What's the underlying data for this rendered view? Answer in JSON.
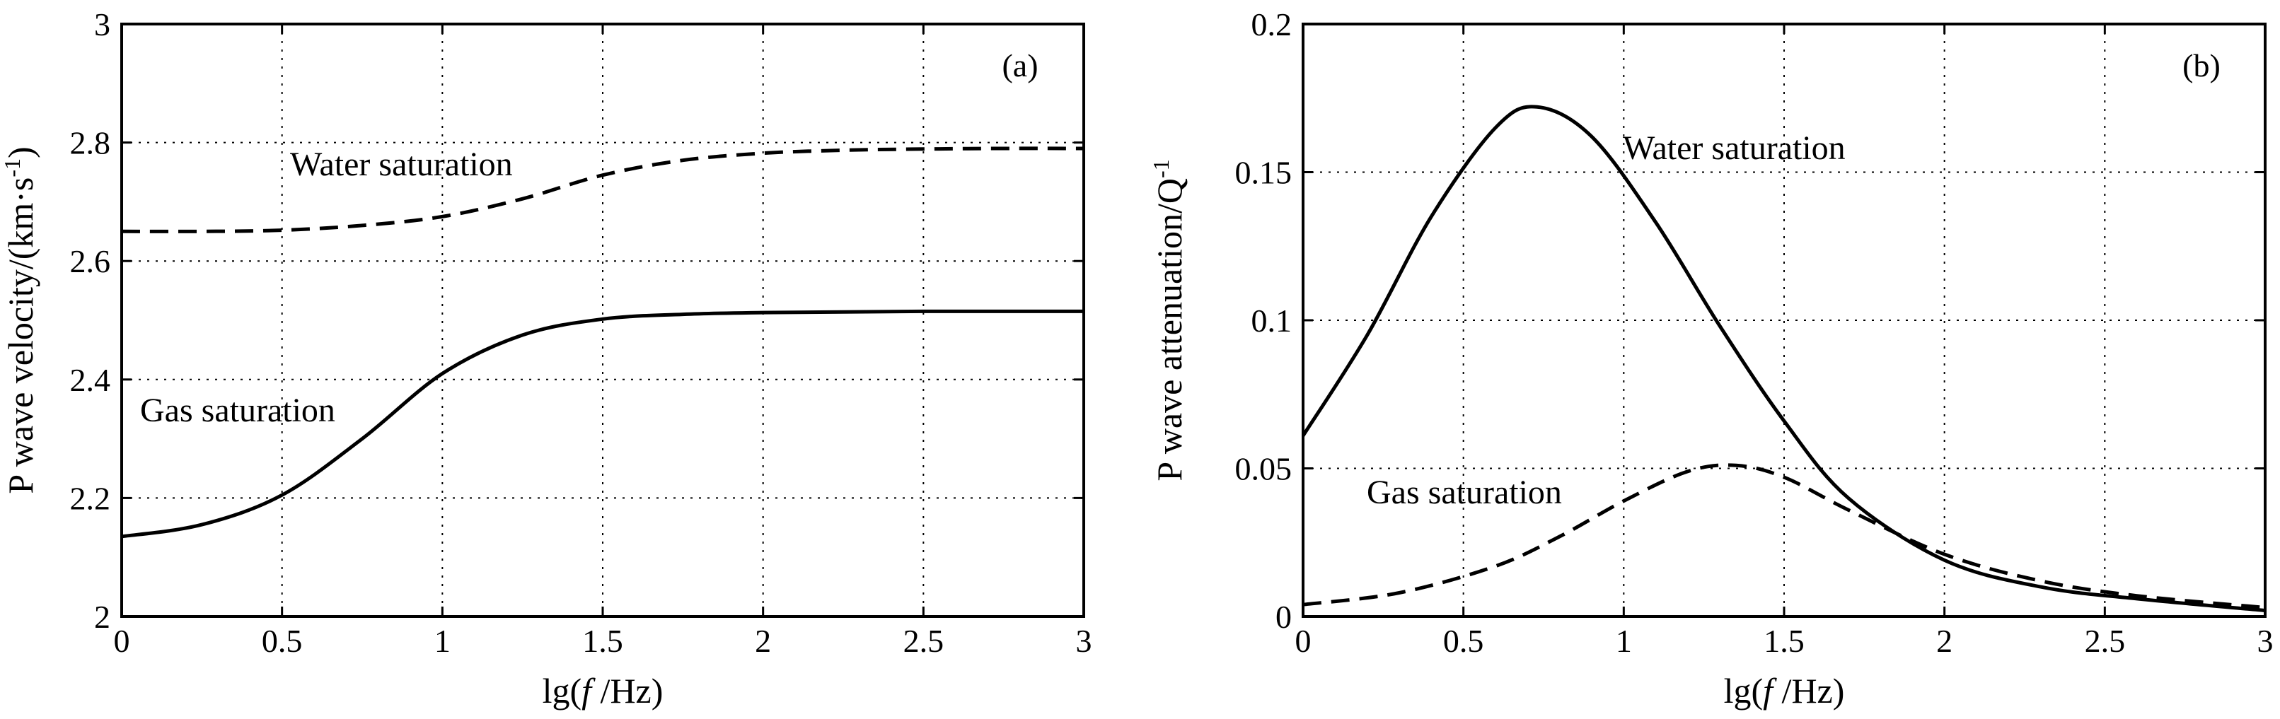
{
  "chart_data": [
    {
      "type": "line",
      "panel_label": "(a)",
      "xlabel": "lg(f /Hz)",
      "ylabel": "P wave velocity/(km·s-1)",
      "xlim": [
        0,
        3
      ],
      "ylim": [
        2,
        3
      ],
      "x_ticks": [
        "0",
        "0.5",
        "1",
        "1.5",
        "2",
        "2.5",
        "3"
      ],
      "y_ticks": [
        "2",
        "2.2",
        "2.4",
        "2.6",
        "2.8",
        "3"
      ],
      "grid": true,
      "annotations": [
        "Water saturation",
        "Gas saturation"
      ],
      "series": [
        {
          "style": "dashed",
          "x": [
            0,
            0.25,
            0.5,
            0.75,
            1.0,
            1.25,
            1.5,
            1.75,
            2.0,
            2.25,
            2.5,
            2.75,
            3.0
          ],
          "values": [
            2.65,
            2.65,
            2.652,
            2.66,
            2.675,
            2.705,
            2.745,
            2.77,
            2.782,
            2.787,
            2.789,
            2.79,
            2.79
          ]
        },
        {
          "style": "solid",
          "x": [
            0,
            0.25,
            0.5,
            0.75,
            1.0,
            1.25,
            1.5,
            1.75,
            2.0,
            2.25,
            2.5,
            2.75,
            3.0
          ],
          "values": [
            2.135,
            2.155,
            2.205,
            2.3,
            2.41,
            2.475,
            2.502,
            2.51,
            2.513,
            2.514,
            2.515,
            2.515,
            2.515
          ]
        }
      ]
    },
    {
      "type": "line",
      "panel_label": "(b)",
      "xlabel": "lg(f /Hz)",
      "ylabel": "P wave attenuation/Q-1",
      "xlim": [
        0,
        3
      ],
      "ylim": [
        0,
        0.2
      ],
      "x_ticks": [
        "0",
        "0.5",
        "1",
        "1.5",
        "2",
        "2.5",
        "3"
      ],
      "y_ticks": [
        "0",
        "0.05",
        "0.1",
        "0.15",
        "0.2"
      ],
      "grid": true,
      "annotations": [
        "Water saturation",
        "Gas saturation"
      ],
      "series": [
        {
          "style": "solid",
          "x": [
            0,
            0.2,
            0.4,
            0.6,
            0.73,
            0.9,
            1.1,
            1.3,
            1.5,
            1.7,
            2.0,
            2.3,
            2.6,
            3.0
          ],
          "values": [
            0.061,
            0.095,
            0.135,
            0.165,
            0.172,
            0.162,
            0.133,
            0.098,
            0.066,
            0.04,
            0.019,
            0.01,
            0.006,
            0.002
          ]
        },
        {
          "style": "dashed",
          "x": [
            0,
            0.3,
            0.6,
            0.8,
            1.0,
            1.2,
            1.35,
            1.5,
            1.7,
            2.0,
            2.3,
            2.6,
            3.0
          ],
          "values": [
            0.004,
            0.008,
            0.017,
            0.027,
            0.039,
            0.049,
            0.051,
            0.047,
            0.036,
            0.021,
            0.012,
            0.007,
            0.003
          ]
        }
      ]
    }
  ]
}
